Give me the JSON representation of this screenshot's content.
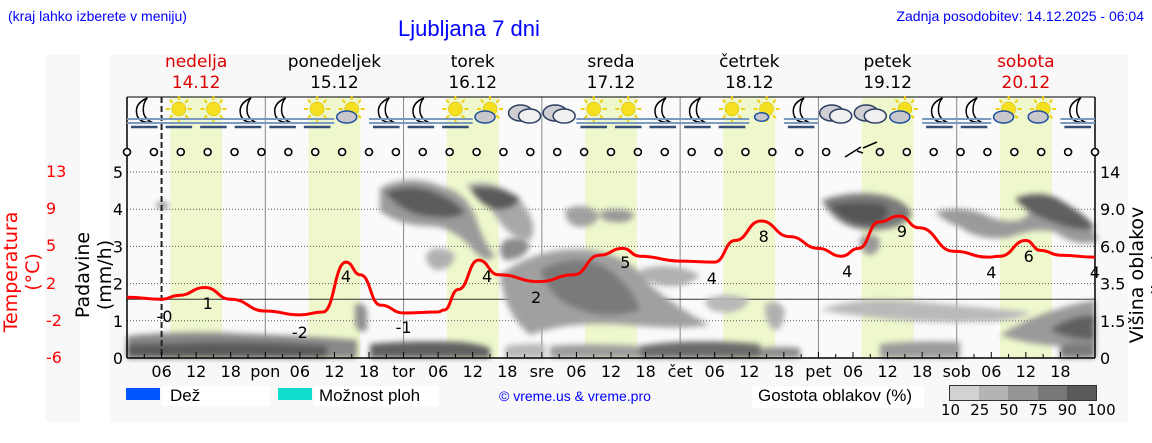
{
  "header": {
    "location_hint": "(kraj lahko izberete v meniju)",
    "title": "Ljubljana 7 dni",
    "last_update": "Zadnja posodobitev: 14.12.2025 - 06:04"
  },
  "days": [
    {
      "name": "nedelja",
      "date": "14.12",
      "weekend": true
    },
    {
      "name": "ponedeljek",
      "date": "15.12",
      "weekend": false
    },
    {
      "name": "torek",
      "date": "16.12",
      "weekend": false
    },
    {
      "name": "sreda",
      "date": "17.12",
      "weekend": false
    },
    {
      "name": "četrtek",
      "date": "18.12",
      "weekend": false
    },
    {
      "name": "petek",
      "date": "19.12",
      "weekend": false
    },
    {
      "name": "sobota",
      "date": "20.12",
      "weekend": true
    }
  ],
  "x_ticks": [
    "06",
    "12",
    "18",
    "pon",
    "06",
    "12",
    "18",
    "tor",
    "06",
    "12",
    "18",
    "sre",
    "06",
    "12",
    "18",
    "čet",
    "06",
    "12",
    "18",
    "pet",
    "06",
    "12",
    "18",
    "sob",
    "06",
    "12",
    "18"
  ],
  "weather_icons": [
    "moon-fog",
    "sun-fog",
    "sun-fog",
    "moon-fog",
    "moon-fog",
    "sun-fog",
    "sun-cloud",
    "moon-fog",
    "moon-fog",
    "sun-fog",
    "sun-cloud",
    "cloudy",
    "cloudy",
    "sun-fog",
    "sun-fog",
    "moon-fog",
    "moon-fog",
    "sun-fog",
    "sun-small-cloud",
    "moon-fog",
    "cloudy",
    "cloudy",
    "sun-cloud",
    "moon-fog",
    "moon-fog",
    "sun-cloud",
    "sun-cloud",
    "moon-fog"
  ],
  "wind_markers": {
    "calm_count": 37,
    "wind_barb_at_hour": 126
  },
  "legend": {
    "rain_label": "Dež",
    "rain_color": "#0055ff",
    "storm_label": "Možnost ploh",
    "storm_color": "#11dccc",
    "copyright": "© vreme.us & vreme.pro",
    "cloud_density_label": "Gostota oblakov (%)",
    "cloud_density_ticks": [
      "10",
      "25",
      "50",
      "75",
      "90",
      "100"
    ],
    "cloud_density_colors": [
      "#d2d2d2",
      "#b4b4b4",
      "#969696",
      "#787878",
      "#5a5a5a"
    ]
  },
  "axes": {
    "left_temp_label": "Temperatura (°C)",
    "left_temp_ticks": [
      "13",
      "9",
      "5",
      "2",
      "-2",
      "-6"
    ],
    "left_precip_label": "Padavine (mm/h)",
    "left_precip_ticks": [
      "5",
      "4",
      "3",
      "2",
      "1",
      "0"
    ],
    "right_cloud_label": "Višina oblakov (km)",
    "right_cloud_ticks": [
      "14",
      "9.0",
      "6.0",
      "3.5",
      "1.5",
      "0"
    ]
  },
  "colors": {
    "temp_line": "#ff0000",
    "daylight_band": "#eef8cc",
    "title_blue": "#0000ff",
    "weekend_red": "#dd0000"
  },
  "chart_data": {
    "type": "line",
    "title": "Ljubljana 7 dni",
    "xlabel": "",
    "ylabel": "Temperatura (°C)",
    "ylim": [
      -6,
      13
    ],
    "x_unit": "hours from 14.12 00:00",
    "series": [
      {
        "name": "Temperatura",
        "x": [
          0,
          6,
          9,
          13.5,
          18,
          24,
          30,
          34,
          38,
          40.5,
          44,
          48,
          54,
          55,
          57.5,
          61,
          64.5,
          71.5,
          77.5,
          82,
          86,
          89,
          96,
          102,
          105.5,
          110,
          115,
          120,
          124,
          127,
          130.5,
          134,
          137.5,
          143.5,
          149.5,
          151.5,
          156,
          158.5,
          162,
          168
        ],
        "values": [
          0.2,
          0.0,
          0.4,
          1.2,
          0.0,
          -1.2,
          -1.6,
          -1.3,
          3.8,
          2.5,
          -0.6,
          -1.4,
          -1.3,
          -1.1,
          1.0,
          4.0,
          2.5,
          1.8,
          2.5,
          4.5,
          5.2,
          4.4,
          3.9,
          3.8,
          6.0,
          8.0,
          6.4,
          5.2,
          4.4,
          5.2,
          7.9,
          8.5,
          7.3,
          4.9,
          4.3,
          4.4,
          6.0,
          5.0,
          4.5,
          4.3
        ]
      }
    ],
    "labels": [
      {
        "hour": 6.5,
        "text": "-0"
      },
      {
        "hour": 14,
        "text": "1"
      },
      {
        "hour": 30,
        "text": "-2"
      },
      {
        "hour": 38,
        "text": "4"
      },
      {
        "hour": 48,
        "text": "-1"
      },
      {
        "hour": 62.5,
        "text": "4"
      },
      {
        "hour": 71,
        "text": "2"
      },
      {
        "hour": 86.5,
        "text": "5"
      },
      {
        "hour": 101.5,
        "text": "4"
      },
      {
        "hour": 110.5,
        "text": "8"
      },
      {
        "hour": 125,
        "text": "4"
      },
      {
        "hour": 134.5,
        "text": "9"
      },
      {
        "hour": 150,
        "text": "4"
      },
      {
        "hour": 156.5,
        "text": "6"
      },
      {
        "hour": 168,
        "text": "4"
      }
    ],
    "precipitation_mm_h": "0 throughout",
    "now_marker_hour": 6,
    "daylight_hours": [
      7.5,
      16.5
    ],
    "precip_axis": {
      "label": "Padavine (mm/h)",
      "range": [
        0,
        5
      ]
    },
    "cloud_axis": {
      "label": "Višina oblakov (km)",
      "ticks": [
        0,
        1.5,
        3.5,
        6.0,
        9.0,
        14
      ]
    },
    "grid": true
  }
}
